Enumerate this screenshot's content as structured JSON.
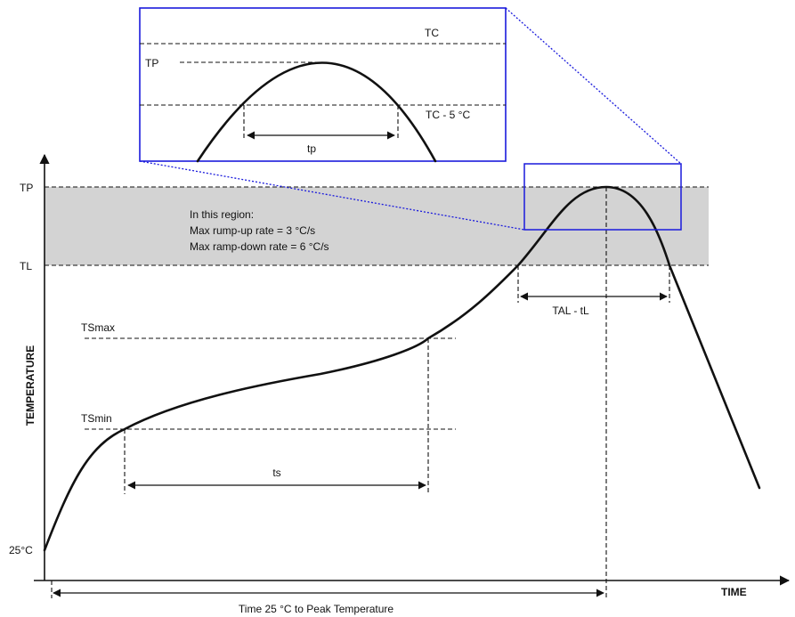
{
  "axes": {
    "x_title": "TIME",
    "y_title": "TEMPERATURE",
    "y_labels": {
      "tp": "TP",
      "tl": "TL",
      "ts_max": "TSmax",
      "ts_min": "TSmin",
      "start": "25°C"
    }
  },
  "region": {
    "line1": "In this region:",
    "line2": "Max rump-up rate = 3 °C/s",
    "line3": "Max ramp-down rate = 6 °C/s",
    "fill_color": "#d3d3d3"
  },
  "durations": {
    "ts": "ts",
    "tal": "TAL - tL",
    "total": "Time 25 °C to Peak Temperature"
  },
  "inset": {
    "tc": "TC",
    "tp": "TP",
    "tc_minus": "TC - 5 °C",
    "tp_duration": "tp",
    "frame_color": "#1a1adc"
  }
}
